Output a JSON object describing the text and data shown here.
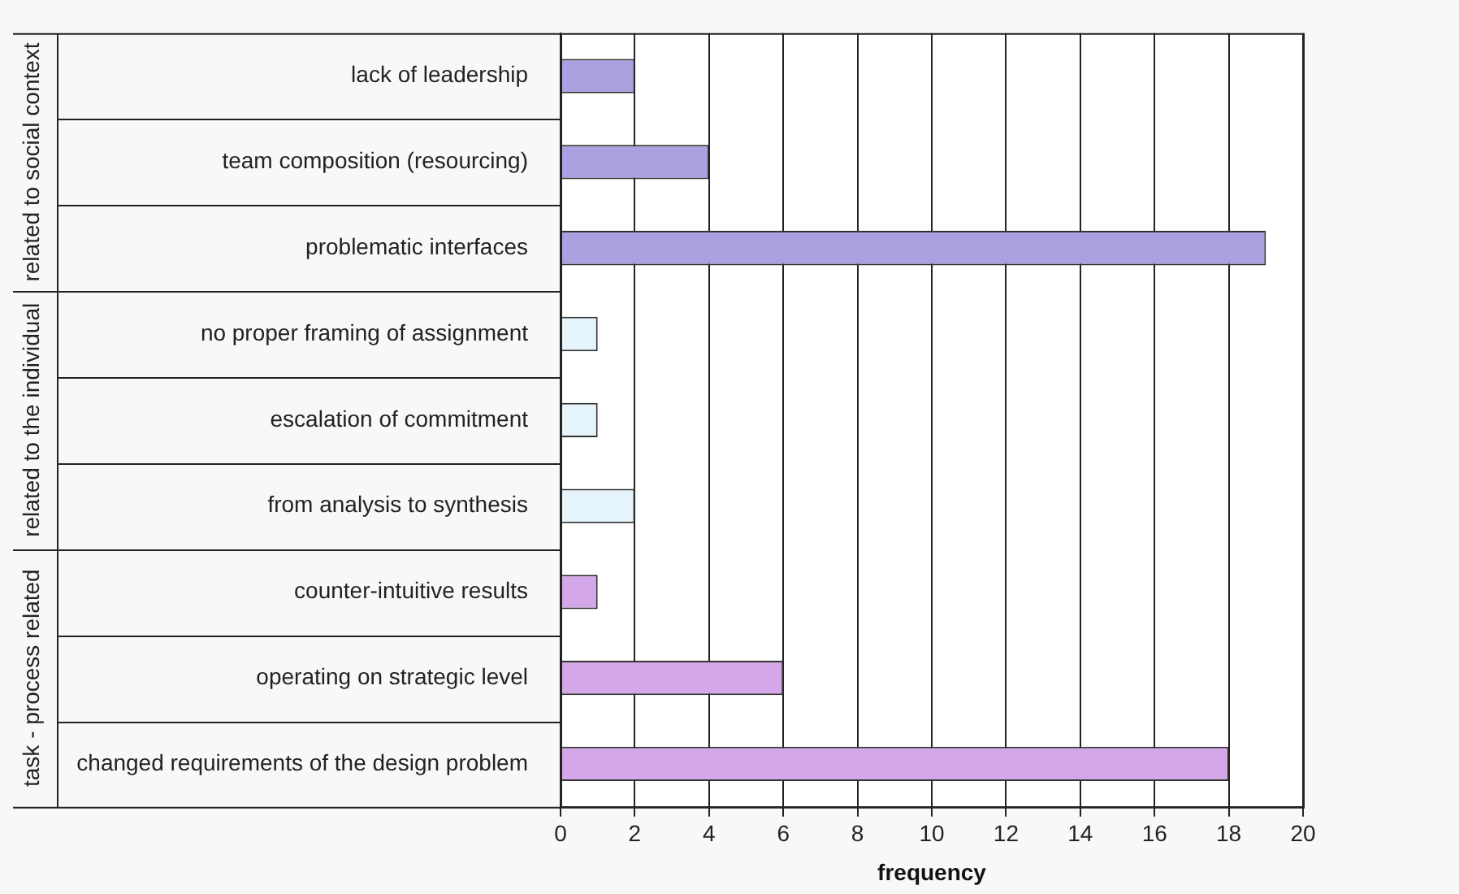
{
  "chart_data": {
    "type": "bar",
    "orientation": "horizontal",
    "xlabel": "frequency",
    "categories": [
      "lack of leadership",
      "team composition (resourcing)",
      "problematic interfaces",
      "no proper framing of assignment",
      "escalation of commitment",
      "from analysis to synthesis",
      "counter-intuitive results",
      "operating on strategic level",
      "changed requirements of the design problem"
    ],
    "values": [
      2,
      4,
      19,
      1,
      1,
      2,
      1,
      6,
      18
    ],
    "colors": [
      "#a9a1e0",
      "#a9a1e0",
      "#a9a1e0",
      "#e4f4fa",
      "#e4f4fa",
      "#e4f4fa",
      "#d4a8e8",
      "#d4a8e8",
      "#d4a8e8"
    ],
    "xlim": [
      0,
      20
    ],
    "xticks": [
      0,
      2,
      4,
      6,
      8,
      10,
      12,
      14,
      16,
      18,
      20
    ],
    "grid": "x",
    "legend": false,
    "annotations": [
      "related to social context",
      "related to the individual",
      "task - process related"
    ]
  }
}
